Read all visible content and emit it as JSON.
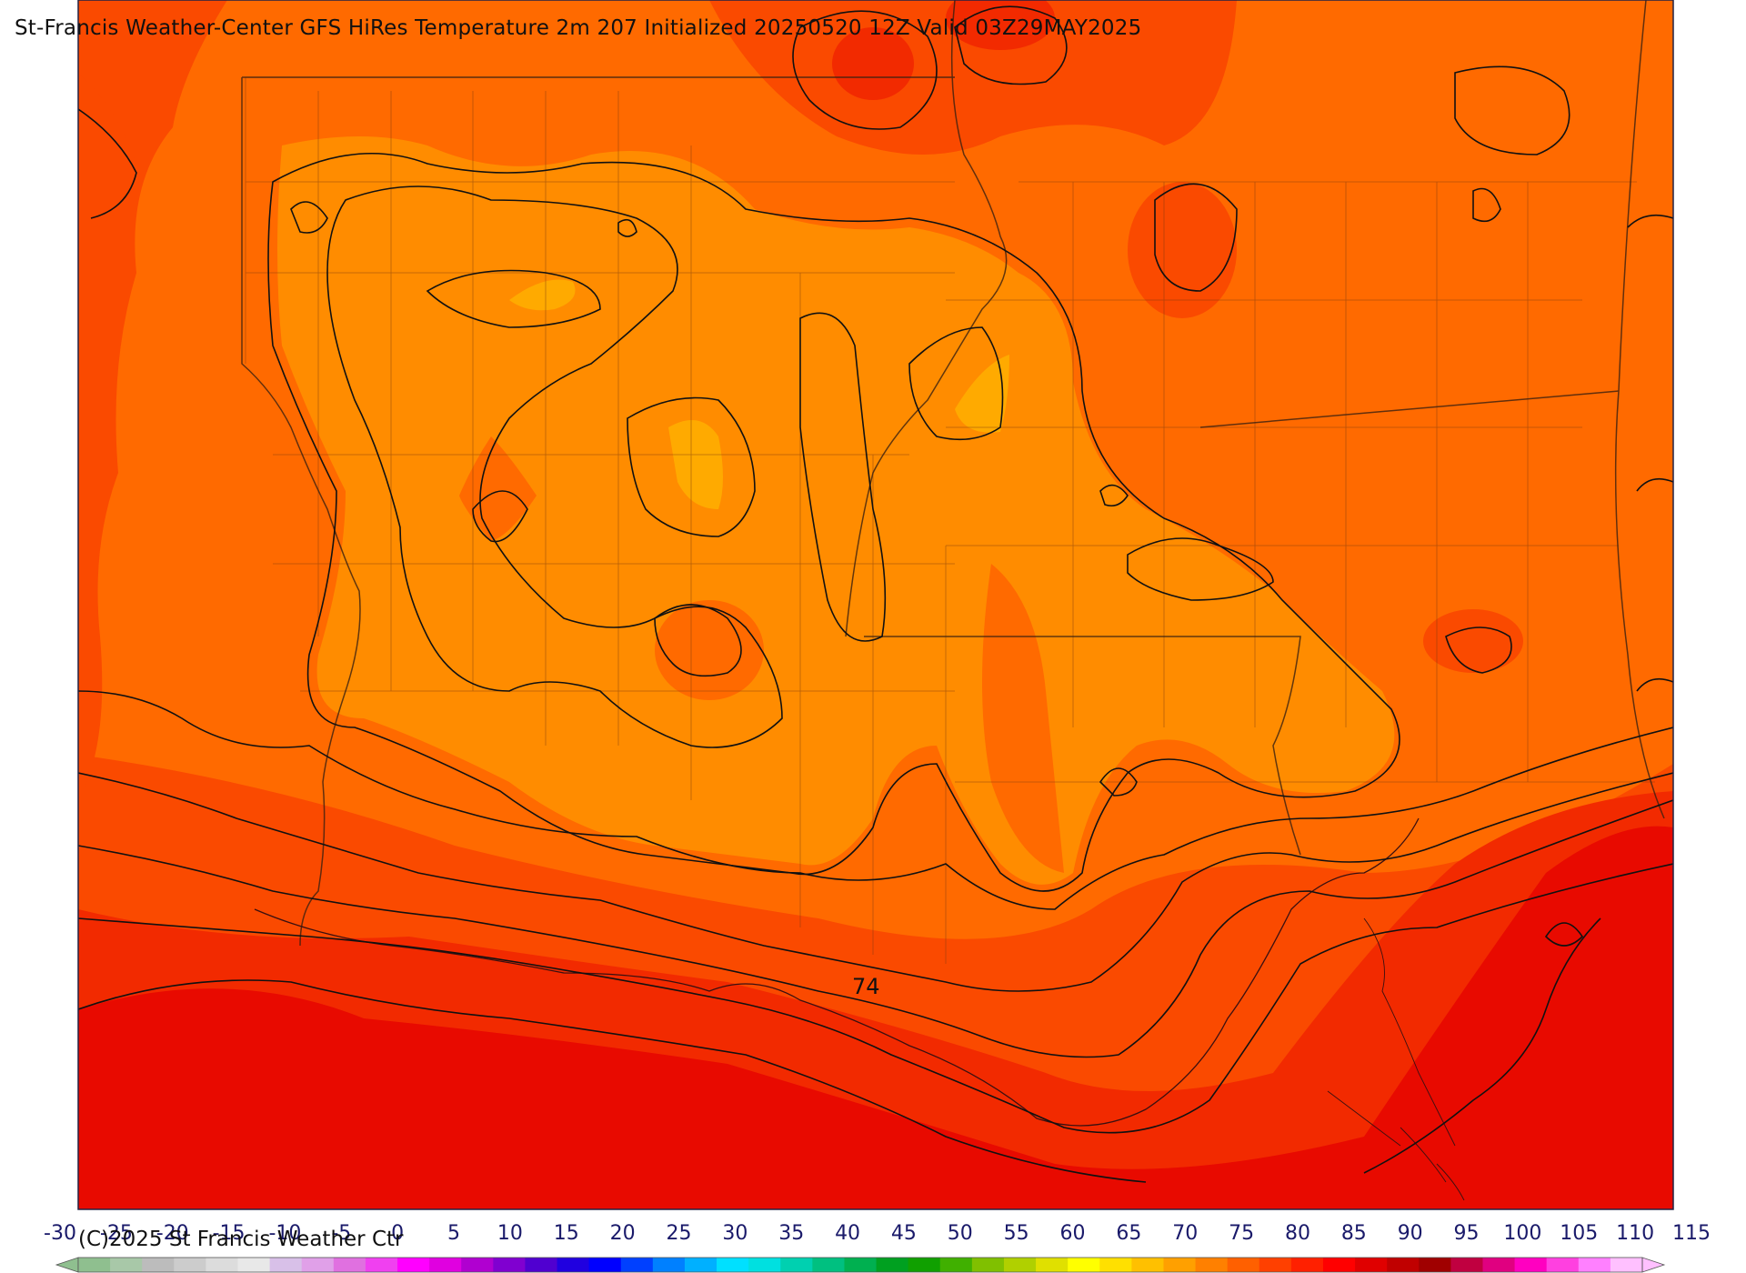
{
  "header": {
    "title": "St-Francis Weather-Center GFS HiRes Temperature 2m  207 Initialized 20250520 12Z Valid 03Z29MAY2025"
  },
  "footer": {
    "copyright": "(C)2025 St Francis Weather Ctr"
  },
  "map": {
    "contour_label": "74",
    "fill_colors": {
      "coast_red": "#e80a00",
      "deep_red": "#f22a00",
      "red_orange": "#fa4a00",
      "orange": "#ff6a00",
      "light_orange": "#ff8c00",
      "yellow_orange": "#ffaa00"
    },
    "contour_color": "#111111"
  },
  "colorbar": {
    "ticks": [
      "-30",
      "-25",
      "-20",
      "-15",
      "-10",
      "-5",
      "0",
      "5",
      "10",
      "15",
      "20",
      "25",
      "30",
      "35",
      "40",
      "45",
      "50",
      "55",
      "60",
      "65",
      "70",
      "75",
      "80",
      "85",
      "90",
      "95",
      "100",
      "105",
      "110",
      "115"
    ],
    "colors": [
      "#8fbf8f",
      "#a8c8a8",
      "#bcbcbc",
      "#cccccc",
      "#dcdcdc",
      "#e8e8e8",
      "#d8c0e8",
      "#e0a0e8",
      "#e070e0",
      "#f040f0",
      "#ff00ff",
      "#e000e0",
      "#b000d0",
      "#8000d0",
      "#5000d0",
      "#2000e0",
      "#0000ff",
      "#0040ff",
      "#0080ff",
      "#00b0ff",
      "#00e0ff",
      "#00e0e0",
      "#00d0b0",
      "#00c080",
      "#00b050",
      "#00a020",
      "#10a000",
      "#40b000",
      "#80c000",
      "#b0d000",
      "#e0e000",
      "#ffff00",
      "#ffe000",
      "#ffc000",
      "#ffa000",
      "#ff8000",
      "#ff6000",
      "#ff4000",
      "#ff2000",
      "#ff0000",
      "#e00000",
      "#c00000",
      "#a00000",
      "#c00040",
      "#e00080",
      "#ff00c0",
      "#ff40e0",
      "#ff80ff",
      "#ffc0ff"
    ]
  }
}
